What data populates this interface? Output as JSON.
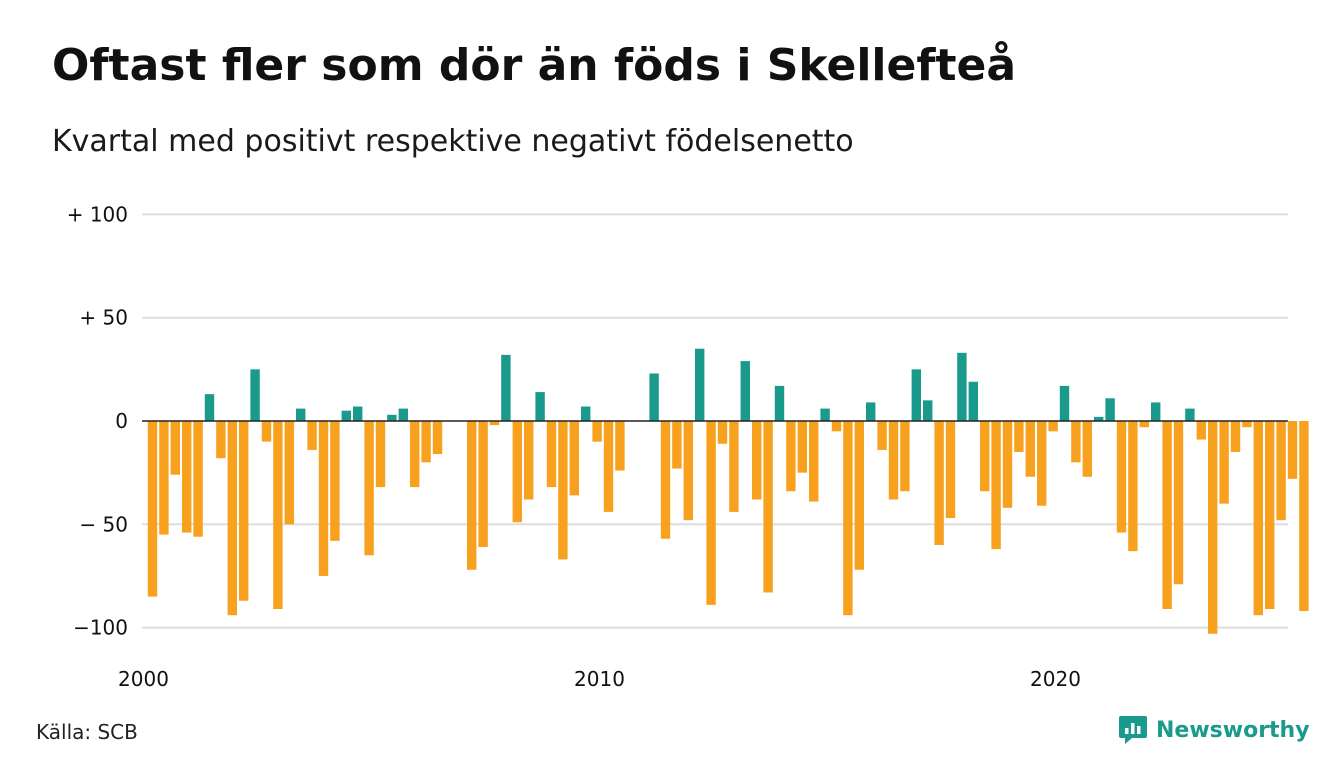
{
  "header": {
    "title": "Oftast fler som dör än föds i Skellefteå",
    "subtitle": "Kvartal med positivt respektive negativt födelsenetto"
  },
  "footer": {
    "source": "Källa: SCB",
    "brand": "Newsworthy",
    "brand_icon": "newsworthy-logo-icon"
  },
  "colors": {
    "positive": "#1a9a8c",
    "negative": "#f7a11e",
    "grid": "#dddddd",
    "zero_line": "#222222"
  },
  "chart_data": {
    "type": "bar",
    "title": "",
    "xlabel": "",
    "ylabel": "",
    "ylim": [
      -110,
      100
    ],
    "grid": true,
    "y_ticks": [
      {
        "value": 100,
        "label": "+ 100"
      },
      {
        "value": 50,
        "label": "+  50"
      },
      {
        "value": 0,
        "label": "0"
      },
      {
        "value": -50,
        "label": "− 50"
      },
      {
        "value": -100,
        "label": "−100"
      }
    ],
    "x_ticks": [
      {
        "quarter": 0,
        "label": "2000"
      },
      {
        "quarter": 40,
        "label": "2010"
      },
      {
        "quarter": 80,
        "label": "2020"
      }
    ],
    "x_start": "2000 Q1",
    "values": [
      -85,
      -55,
      -26,
      -54,
      -56,
      13,
      -18,
      -94,
      -87,
      25,
      -10,
      -91,
      -50,
      6,
      -14,
      -75,
      -58,
      5,
      7,
      -65,
      -32,
      3,
      6,
      -32,
      -20,
      -16,
      0,
      0,
      -72,
      -61,
      -2,
      32,
      -49,
      -38,
      14,
      -32,
      -67,
      -36,
      7,
      -10,
      -44,
      -24,
      0,
      0,
      23,
      -57,
      -23,
      -48,
      35,
      -89,
      -11,
      -44,
      29,
      -38,
      -83,
      17,
      -34,
      -25,
      -39,
      6,
      -5,
      -94,
      -72,
      9,
      -14,
      -38,
      -34,
      25,
      10,
      -60,
      -47,
      33,
      19,
      -34,
      -62,
      -42,
      -15,
      -27,
      -41,
      -5,
      17,
      -20,
      -27,
      2,
      11,
      -54,
      -63,
      -3,
      9,
      -91,
      -79,
      6,
      -9,
      -103,
      -40,
      -15,
      -3,
      -94,
      -91,
      -48,
      -28,
      -92
    ]
  }
}
